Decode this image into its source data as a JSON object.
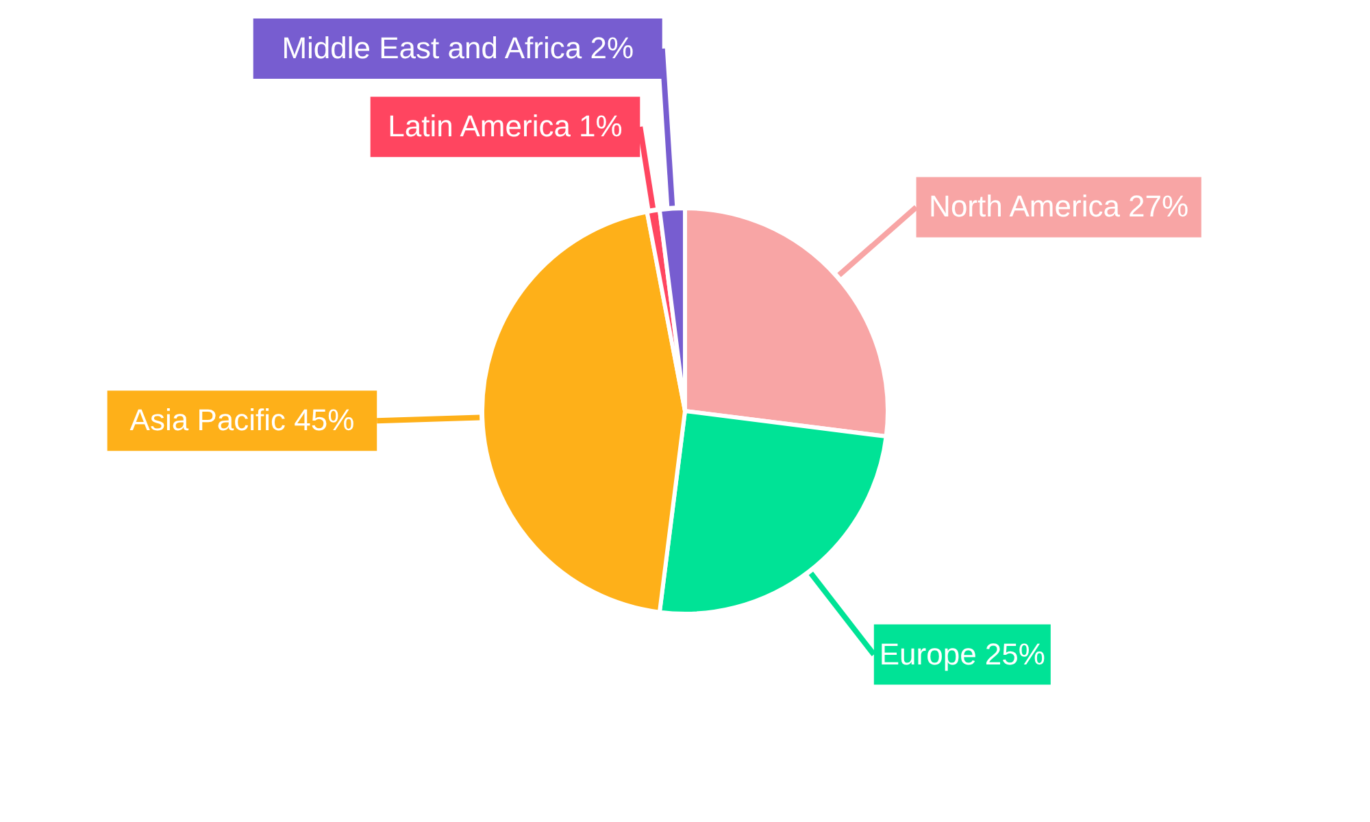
{
  "chart_data": {
    "type": "pie",
    "categories": [
      "North America",
      "Europe",
      "Asia Pacific",
      "Latin America",
      "Middle East and Africa"
    ],
    "values": [
      27,
      25,
      45,
      1,
      2
    ],
    "value_labels": [
      "27%",
      "25%",
      "45%",
      "1%",
      "2%"
    ],
    "colors": [
      "#f8a5a5",
      "#00e396",
      "#feb019",
      "#ff4560",
      "#775dd0"
    ]
  }
}
